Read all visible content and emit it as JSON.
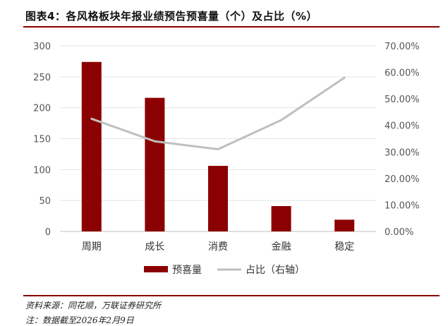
{
  "figure": {
    "title": "图表4：各风格板块年报业绩预告预喜量（个）及占比（%）",
    "source": "资料来源：同花顺，万联证券研究所",
    "note": "注：数据截至2026年2月9日"
  },
  "chart_data": {
    "type": "bar",
    "categories": [
      "周期",
      "成长",
      "消费",
      "金融",
      "稳定"
    ],
    "series": [
      {
        "name": "预喜量",
        "type": "bar",
        "axis": "left",
        "color": "#8b0000",
        "values": [
          274,
          216,
          106,
          41,
          19
        ]
      },
      {
        "name": "占比（右轴）",
        "type": "line",
        "axis": "right",
        "color": "#bfbfbf",
        "values": [
          0.425,
          0.34,
          0.31,
          0.42,
          0.58
        ]
      }
    ],
    "y_left": {
      "min": 0,
      "max": 300,
      "ticks": [
        0,
        50,
        100,
        150,
        200,
        250,
        300
      ]
    },
    "y_right": {
      "min": 0,
      "max": 0.7,
      "ticks": [
        0,
        0.1,
        0.2,
        0.3,
        0.4,
        0.5,
        0.6,
        0.7
      ],
      "tick_labels": [
        "0.00%",
        "10.00%",
        "20.00%",
        "30.00%",
        "40.00%",
        "50.00%",
        "60.00%",
        "70.00%"
      ]
    },
    "grid": true,
    "legend": "bottom"
  }
}
